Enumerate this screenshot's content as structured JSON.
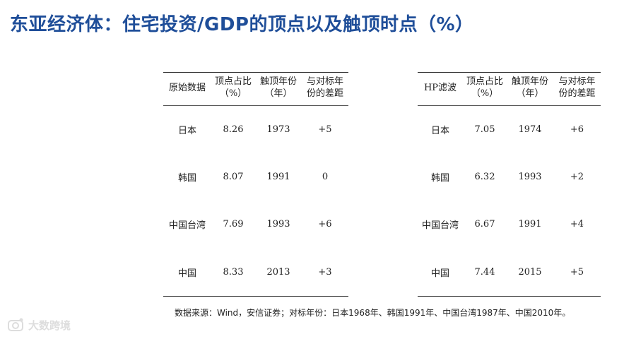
{
  "title": "东亚经济体：住宅投资/GDP的顶点以及触顶时点（%）",
  "tables": [
    {
      "name": "原始数据",
      "headers": [
        "原始数据",
        "顶点占比\n（%）",
        "触顶年份\n（年）",
        "与对标年\n份的差距"
      ],
      "rows": [
        [
          "日本",
          "8.26",
          "1973",
          "+5"
        ],
        [
          "韩国",
          "8.07",
          "1991",
          "0"
        ],
        [
          "中国台湾",
          "7.69",
          "1993",
          "+6"
        ],
        [
          "中国",
          "8.33",
          "2013",
          "+3"
        ]
      ]
    },
    {
      "name": "HP滤波",
      "headers": [
        "HP滤波",
        "顶点占比\n（%）",
        "触顶年份\n（年）",
        "与对标年\n份的差距"
      ],
      "rows": [
        [
          "日本",
          "7.05",
          "1974",
          "+6"
        ],
        [
          "韩国",
          "6.32",
          "1993",
          "+2"
        ],
        [
          "中国台湾",
          "6.67",
          "1991",
          "+4"
        ],
        [
          "中国",
          "7.44",
          "2015",
          "+5"
        ]
      ]
    }
  ],
  "source": "数据来源：Wind，安信证券；对标年份：日本1968年、韩国1991年、中国台湾1987年、中国2010年。",
  "watermark": {
    "text": "大数跨境",
    "icon": "camera-logo-icon",
    "color": "#d8d8d8"
  },
  "colors": {
    "title": "#1f4e99",
    "text": "#222222",
    "rule": "#333333"
  }
}
